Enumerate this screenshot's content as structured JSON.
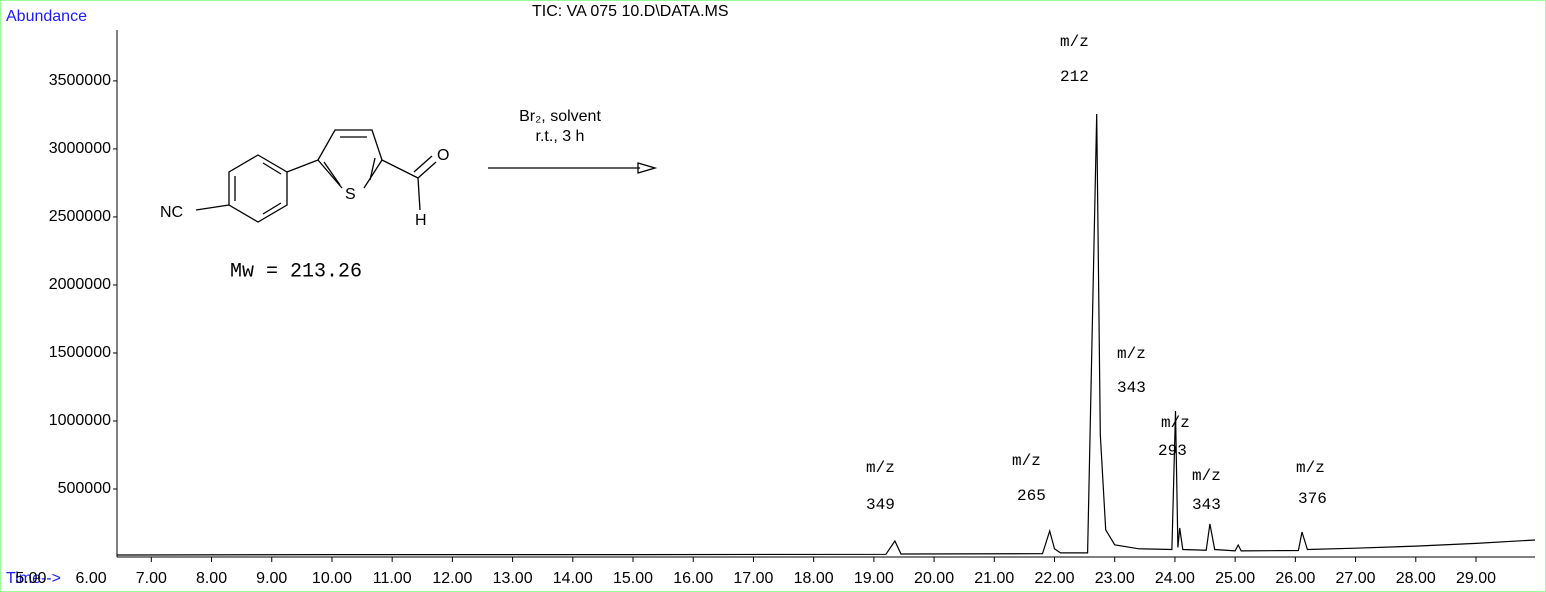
{
  "chart_data": {
    "type": "line",
    "title": "TIC: VA 075 10.D\\DATA.MS",
    "y_label": "Abundance",
    "x_label": "Time-->",
    "xlim": [
      6.43,
      29.98
    ],
    "ylim": [
      0,
      4058000
    ],
    "xticks": [
      {
        "value": 5,
        "label": "5.00"
      },
      {
        "value": 6,
        "label": "6.00"
      },
      {
        "value": 7,
        "label": "7.00"
      },
      {
        "value": 8,
        "label": "8.00"
      },
      {
        "value": 9,
        "label": "9.00"
      },
      {
        "value": 10,
        "label": "10.00"
      },
      {
        "value": 11,
        "label": "11.00"
      },
      {
        "value": 12,
        "label": "12.00"
      },
      {
        "value": 13,
        "label": "13.00"
      },
      {
        "value": 14,
        "label": "14.00"
      },
      {
        "value": 15,
        "label": "15.00"
      },
      {
        "value": 16,
        "label": "16.00"
      },
      {
        "value": 17,
        "label": "17.00"
      },
      {
        "value": 18,
        "label": "18.00"
      },
      {
        "value": 19,
        "label": "19.00"
      },
      {
        "value": 20,
        "label": "20.00"
      },
      {
        "value": 21,
        "label": "21.00"
      },
      {
        "value": 22,
        "label": "22.00"
      },
      {
        "value": 23,
        "label": "23.00"
      },
      {
        "value": 24,
        "label": "24.00"
      },
      {
        "value": 25,
        "label": "25.00"
      },
      {
        "value": 26,
        "label": "26.00"
      },
      {
        "value": 27,
        "label": "27.00"
      },
      {
        "value": 28,
        "label": "28.00"
      },
      {
        "value": 29,
        "label": "29.00"
      }
    ],
    "yticks": [
      500000,
      1000000,
      1500000,
      2000000,
      2500000,
      3000000,
      3500000
    ],
    "series": [
      {
        "name": "TIC",
        "color": "#000000",
        "x": [
          6.43,
          10,
          15,
          19.2,
          19.35,
          19.45,
          21.8,
          21.92,
          22.0,
          22.1,
          22.55,
          22.7,
          22.76,
          22.85,
          23.0,
          23.4,
          23.95,
          24.01,
          24.05,
          24.08,
          24.13,
          24.52,
          24.58,
          24.66,
          25.0,
          25.05,
          25.1,
          26.05,
          26.11,
          26.2,
          27,
          28,
          29,
          29.98
        ],
        "values": [
          15000,
          18000,
          18000,
          20000,
          117600,
          22000,
          24000,
          191000,
          60000,
          30000,
          30000,
          3257000,
          900000,
          200000,
          90000,
          60000,
          55000,
          1073000,
          70000,
          213000,
          55000,
          50000,
          243000,
          55000,
          45000,
          88000,
          45000,
          48000,
          184000,
          55000,
          65000,
          80000,
          100000,
          125000
        ]
      }
    ],
    "annotations": [
      [
        "m/z",
        "212"
      ],
      [
        "m/z",
        "343"
      ],
      [
        "m/z",
        "293"
      ],
      [
        "m/z",
        "343"
      ],
      [
        "m/z",
        "349"
      ],
      [
        "m/z",
        "265"
      ],
      [
        "m/z",
        "376"
      ]
    ],
    "scheme": {
      "nitrile": "NC",
      "sulfur": "S",
      "oxygen": "O",
      "hydrogen": "H",
      "reagents": "Br₂, solvent",
      "conditions": "r.t., 3 h",
      "mw": "Mw = 213.26"
    }
  }
}
